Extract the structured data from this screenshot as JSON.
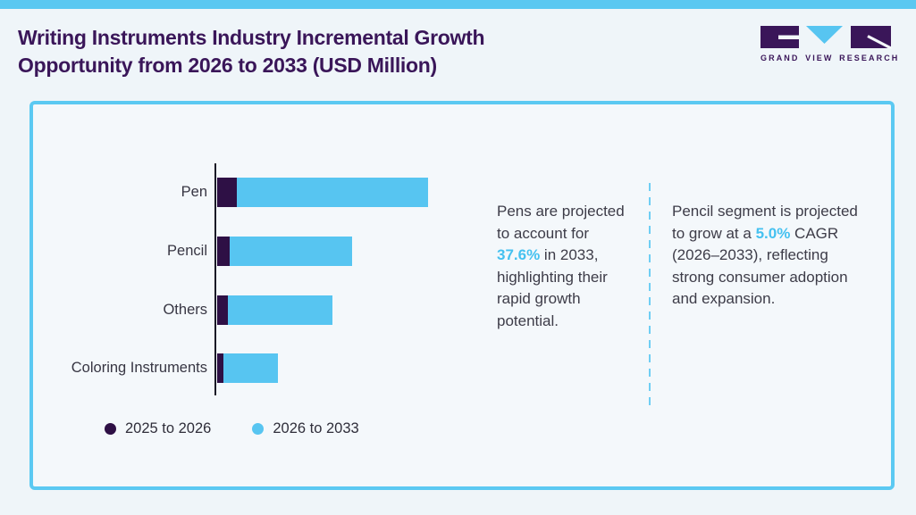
{
  "page": {
    "top_strip_color": "#5BC8F1",
    "background_color": "#EFF5F9",
    "card_border_color": "#5BC9F2",
    "card_background_color": "#F4F8FB"
  },
  "header": {
    "title_lines": [
      "Writing Instruments Industry Incremental Growth",
      "Opportunity from 2026 to 2033 (USD Million)"
    ],
    "title_color": "#3A1659"
  },
  "logo": {
    "name": "GRAND VIEW RESEARCH",
    "mark_dark_color": "#3A1659",
    "mark_blue_color": "#57C5F1"
  },
  "chart_data": {
    "type": "bar",
    "orientation": "horizontal",
    "stacked": true,
    "title": "Writing Instruments Industry Incremental Growth Opportunity from 2026 to 2033 (USD Million)",
    "categories": [
      "Pen",
      "Pencil",
      "Others",
      "Coloring Instruments"
    ],
    "series": [
      {
        "name": "2025 to 2026",
        "color": "#2E1045",
        "values": [
          22,
          14,
          12,
          7
        ]
      },
      {
        "name": "2026 to 2033",
        "color": "#57C5F1",
        "values": [
          214,
          137,
          117,
          61
        ]
      }
    ],
    "units": "relative bar lengths (no numeric axis, gridlines or value labels shown)",
    "xlabel": "",
    "ylabel": "",
    "gridlines": false,
    "value_labels": false,
    "legend_position": "bottom-left"
  },
  "annotations": {
    "left": {
      "text_before": "Pens are projected to account for ",
      "highlight": "37.6%",
      "text_after": " in 2033, highlighting their rapid growth potential."
    },
    "right": {
      "text_before": "Pencil segment is projected to grow at a ",
      "highlight": "5.0%",
      "text_after": " CAGR (2026–2033), reflecting strong consumer adoption and expansion."
    },
    "highlight_color": "#45C1F0"
  }
}
